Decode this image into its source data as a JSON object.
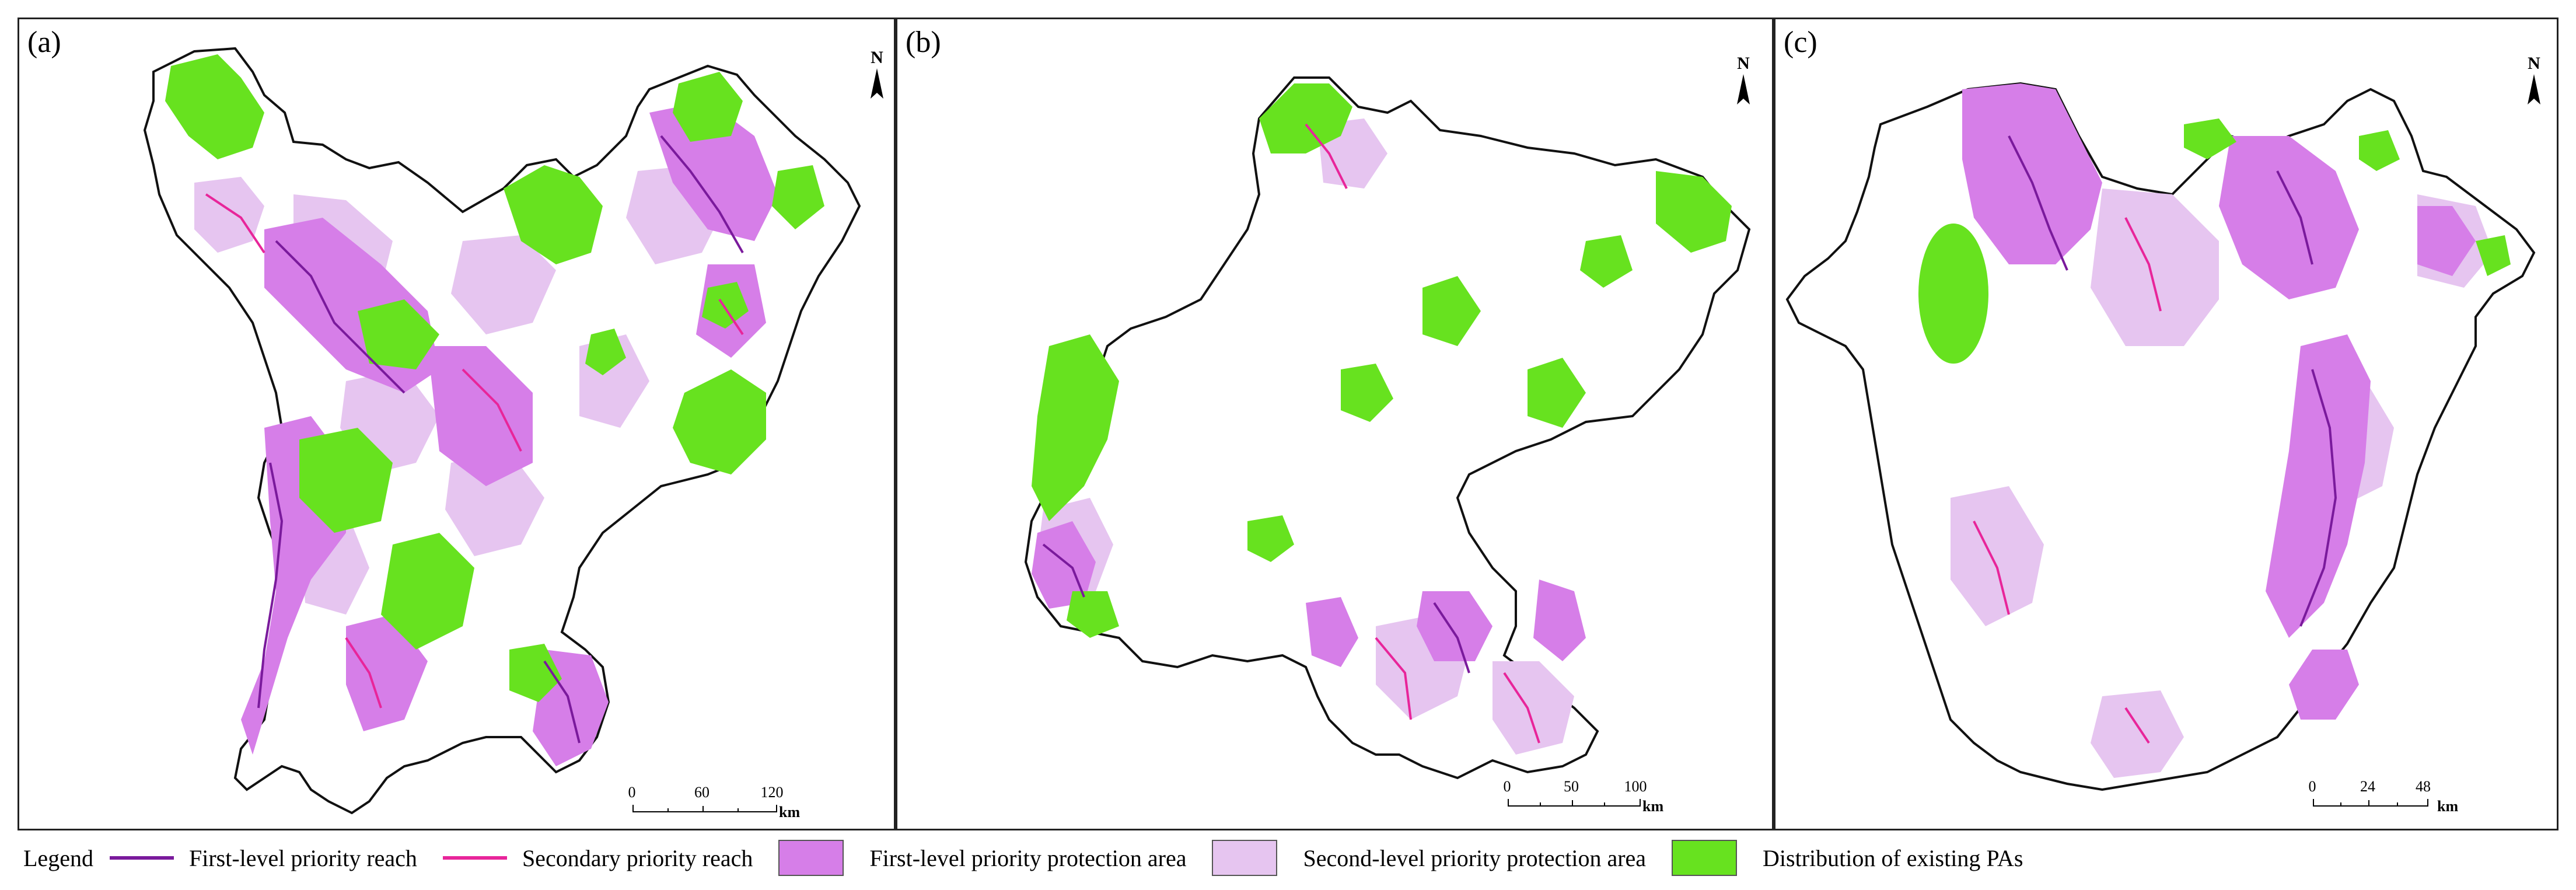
{
  "panels": [
    {
      "id": "a",
      "label": "(a)",
      "north": "N",
      "scale": {
        "ticks": [
          "0",
          "60",
          "120"
        ],
        "unit": "km"
      }
    },
    {
      "id": "b",
      "label": "(b)",
      "north": "N",
      "scale": {
        "ticks": [
          "0",
          "50",
          "100"
        ],
        "unit": "km"
      }
    },
    {
      "id": "c",
      "label": "(c)",
      "north": "N",
      "scale": {
        "ticks": [
          "0",
          "24",
          "48"
        ],
        "unit": "km"
      }
    }
  ],
  "legend": {
    "title": "Legend",
    "items": [
      {
        "label": "First-level priority reach",
        "kind": "line",
        "color": "#7a1a9c"
      },
      {
        "label": "Secondary priority reach",
        "kind": "line",
        "color": "#e8259a"
      },
      {
        "label": "First-level priority protection area",
        "kind": "fill",
        "color": "#d67ee8"
      },
      {
        "label": "Second-level priority protection area",
        "kind": "fill",
        "color": "#e6c5f0"
      },
      {
        "label": "Distribution of existing PAs",
        "kind": "fill",
        "color": "#67e21f"
      }
    ]
  },
  "colors": {
    "first_area": "#d67ee8",
    "second_area": "#e6c5f0",
    "existing_pa": "#67e21f",
    "first_reach": "#7a1a9c",
    "secondary_reach": "#e8259a",
    "boundary": "#111111"
  }
}
